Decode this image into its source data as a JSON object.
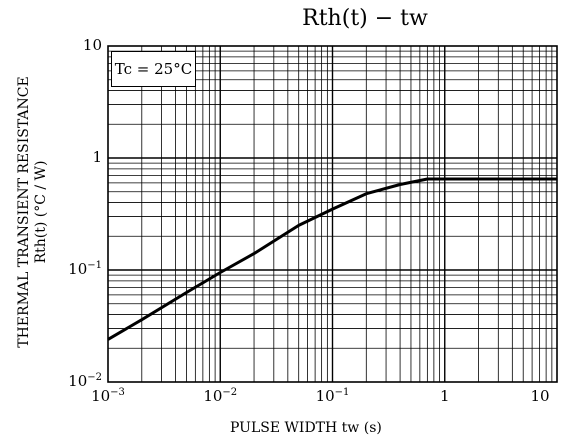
{
  "chart_data": {
    "type": "line",
    "title": "Rth(t) − tw",
    "xlabel": "PULSE WIDTH  tw  (s)",
    "ylabel": [
      "THERMAL TRANSIENT RESISTANCE",
      "Rth(t)  (°C / W)"
    ],
    "x_scale": "log",
    "y_scale": "log",
    "xlim": [
      0.001,
      10
    ],
    "ylim": [
      0.01,
      10
    ],
    "grid": true,
    "annotation": "Tc = 25°C",
    "x_ticks": [
      {
        "value": 0.001,
        "base": "10",
        "exp": "−3"
      },
      {
        "value": 0.01,
        "base": "10",
        "exp": "−2"
      },
      {
        "value": 0.1,
        "base": "10",
        "exp": "−1"
      },
      {
        "value": 1,
        "base": "1",
        "exp": ""
      },
      {
        "value": 10,
        "base": "10",
        "exp": ""
      }
    ],
    "y_ticks": [
      {
        "value": 10,
        "base": "10",
        "exp": ""
      },
      {
        "value": 1,
        "base": "1",
        "exp": ""
      },
      {
        "value": 0.1,
        "base": "10",
        "exp": "−1"
      },
      {
        "value": 0.01,
        "base": "10",
        "exp": "−2"
      }
    ],
    "series": [
      {
        "x": [
          0.001,
          0.002,
          0.005,
          0.01,
          0.02,
          0.05,
          0.1,
          0.2,
          0.4,
          0.7,
          1,
          2,
          5,
          10
        ],
        "y": [
          0.024,
          0.036,
          0.063,
          0.095,
          0.14,
          0.25,
          0.35,
          0.48,
          0.58,
          0.65,
          0.65,
          0.65,
          0.65,
          0.65
        ]
      }
    ]
  }
}
